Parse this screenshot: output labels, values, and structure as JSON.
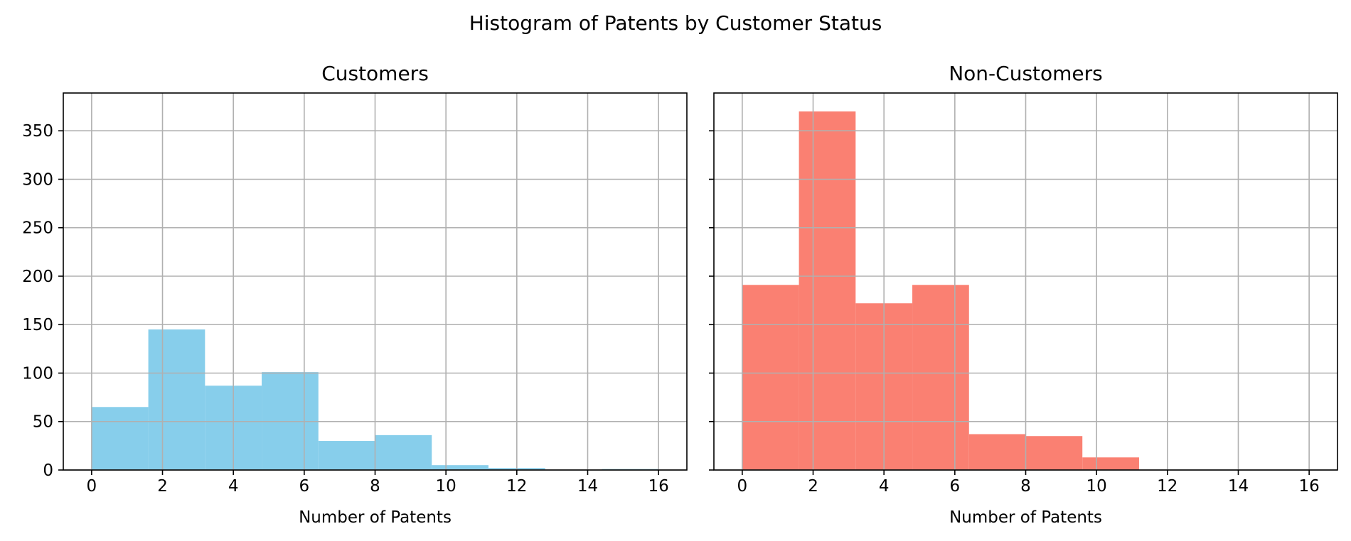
{
  "chart_data": {
    "title": "Histogram of Patents by Customer Status",
    "type": "bar",
    "charts": [
      {
        "type": "bar",
        "title": "Customers",
        "xlabel": "Number of Patents",
        "ylabel": "",
        "color": "#87CEEB",
        "bin_edges": [
          0,
          1.6,
          3.2,
          4.8,
          6.4,
          8.0,
          9.6,
          11.2,
          12.8,
          14.4,
          16.0
        ],
        "values": [
          65,
          145,
          87,
          101,
          30,
          36,
          5,
          2,
          0,
          1
        ],
        "xlim": [
          -0.8,
          16.8
        ],
        "ylim": [
          0,
          389
        ],
        "xticks": [
          0,
          2,
          4,
          6,
          8,
          10,
          12,
          14,
          16
        ],
        "yticks": [
          0,
          50,
          100,
          150,
          200,
          250,
          300,
          350
        ],
        "grid": true
      },
      {
        "type": "bar",
        "title": "Non-Customers",
        "xlabel": "Number of Patents",
        "ylabel": "",
        "color": "#FA8072",
        "bin_edges": [
          0,
          1.6,
          3.2,
          4.8,
          6.4,
          8.0,
          9.6,
          11.2,
          12.8,
          14.4,
          16.0
        ],
        "values": [
          191,
          370,
          172,
          191,
          37,
          35,
          13,
          0,
          0,
          0
        ],
        "xlim": [
          -0.8,
          16.8
        ],
        "ylim": [
          0,
          389
        ],
        "xticks": [
          0,
          2,
          4,
          6,
          8,
          10,
          12,
          14,
          16
        ],
        "yticks": [
          0,
          50,
          100,
          150,
          200,
          250,
          300,
          350
        ],
        "grid": true,
        "shared_y": true
      }
    ]
  }
}
